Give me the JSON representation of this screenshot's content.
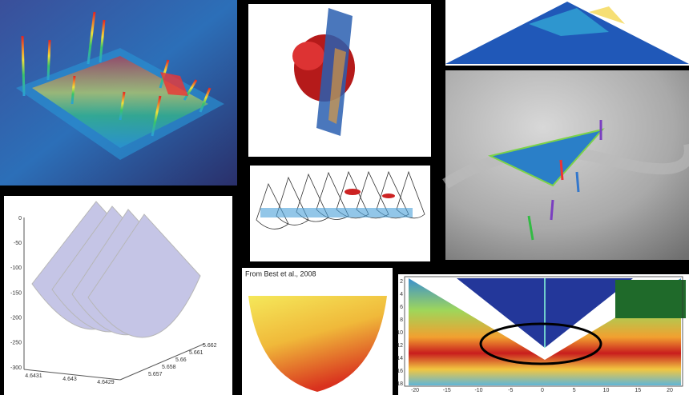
{
  "bottom_middle": {
    "caption": "From Best et al., 2008"
  },
  "bottom_right": {
    "xticks": [
      "-20",
      "-15",
      "-10",
      "-5",
      "0",
      "5",
      "10",
      "15",
      "20"
    ],
    "yticks": [
      "2",
      "4",
      "6",
      "8",
      "10",
      "12",
      "14",
      "16",
      "18"
    ]
  },
  "bottom_left": {
    "yticks": [
      "0",
      "-50",
      "-100",
      "-150",
      "-200",
      "-250",
      "-300"
    ],
    "xticks": [
      "4.6431",
      "4.643",
      "4.6429"
    ],
    "zticks": [
      "5.657",
      "5.658",
      "5.66",
      "5.661",
      "5.662"
    ]
  }
}
